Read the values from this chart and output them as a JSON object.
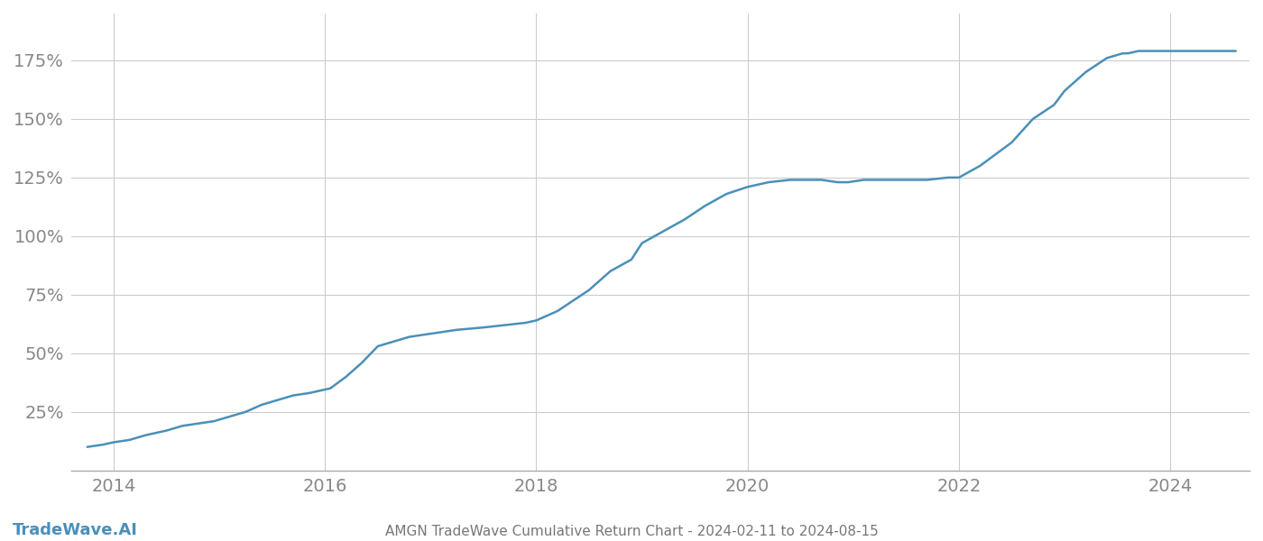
{
  "title": "AMGN TradeWave Cumulative Return Chart - 2024-02-11 to 2024-08-15",
  "watermark": "TradeWave.AI",
  "line_color": "#4a90b8",
  "background_color": "#ffffff",
  "grid_color": "#cccccc",
  "data_x": [
    2013.75,
    2013.9,
    2014.0,
    2014.15,
    2014.3,
    2014.5,
    2014.65,
    2014.8,
    2014.95,
    2015.1,
    2015.25,
    2015.4,
    2015.55,
    2015.7,
    2015.85,
    2015.95,
    2016.05,
    2016.2,
    2016.35,
    2016.5,
    2016.65,
    2016.8,
    2016.95,
    2017.1,
    2017.25,
    2017.5,
    2017.7,
    2017.9,
    2018.0,
    2018.2,
    2018.5,
    2018.7,
    2018.9,
    2019.0,
    2019.2,
    2019.4,
    2019.6,
    2019.8,
    2020.0,
    2020.2,
    2020.4,
    2020.55,
    2020.7,
    2020.85,
    2020.95,
    2021.1,
    2021.3,
    2021.5,
    2021.7,
    2021.9,
    2022.0,
    2022.2,
    2022.5,
    2022.7,
    2022.9,
    2023.0,
    2023.2,
    2023.4,
    2023.55,
    2023.6,
    2023.7,
    2023.8,
    2023.95,
    2024.0,
    2024.2,
    2024.5,
    2024.62
  ],
  "data_y": [
    10,
    11,
    12,
    13,
    15,
    17,
    19,
    20,
    21,
    23,
    25,
    28,
    30,
    32,
    33,
    34,
    35,
    40,
    46,
    53,
    55,
    57,
    58,
    59,
    60,
    61,
    62,
    63,
    64,
    68,
    77,
    85,
    90,
    97,
    102,
    107,
    113,
    118,
    121,
    123,
    124,
    124,
    124,
    123,
    123,
    124,
    124,
    124,
    124,
    125,
    125,
    130,
    140,
    150,
    156,
    162,
    170,
    176,
    178,
    178,
    179,
    179,
    179,
    179,
    179,
    179,
    179
  ],
  "ylim": [
    0,
    195
  ],
  "xlim": [
    2013.6,
    2024.75
  ],
  "yticks": [
    25,
    50,
    75,
    100,
    125,
    150,
    175
  ],
  "xtick_labels": [
    "2014",
    "2016",
    "2018",
    "2020",
    "2022",
    "2024"
  ],
  "xtick_positions": [
    2014,
    2016,
    2018,
    2020,
    2022,
    2024
  ],
  "title_fontsize": 11,
  "watermark_fontsize": 13,
  "tick_fontsize": 14,
  "line_width": 1.8
}
